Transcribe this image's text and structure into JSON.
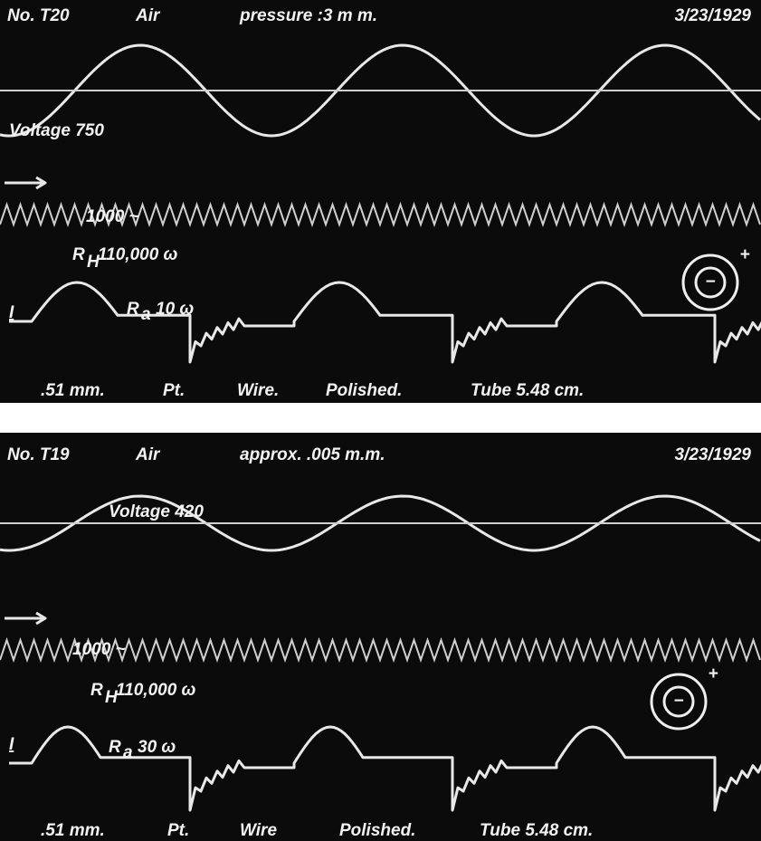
{
  "panels": [
    {
      "number": "No. T20",
      "gas": "Air",
      "pressure": "pressure :3 m m.",
      "date": "3/23/1929",
      "voltage": "Voltage 750",
      "frequency": "1000 ~",
      "rh_symbol": "R",
      "rh_subscript": "H",
      "rh_value": "110,000 ω",
      "current": "I",
      "ra_symbol": "R",
      "ra_subscript": "a",
      "ra_value": "10 ω",
      "polarity_minus": "−",
      "polarity_plus": "+",
      "footer": [
        ".51 mm.",
        "Pt.",
        "Wire.",
        "Polished.",
        "Tube 5.48 cm."
      ]
    },
    {
      "number": "No. T19",
      "gas": "Air",
      "pressure": "approx. .005 m.m.",
      "date": "3/23/1929",
      "voltage": "Voltage 420",
      "frequency": "1000 ~",
      "rh_symbol": "R",
      "rh_subscript": "H",
      "rh_value": "110,000 ω",
      "current": "I",
      "ra_symbol": "R",
      "ra_subscript": "a",
      "ra_value": "30 ω",
      "polarity_minus": "−",
      "polarity_plus": "+",
      "footer": [
        ".51 mm.",
        "Pt.",
        "Wire",
        "Polished.",
        "Tube 5.48 cm."
      ]
    }
  ]
}
